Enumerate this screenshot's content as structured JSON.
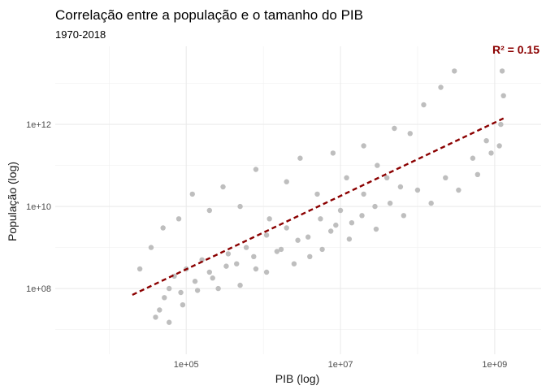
{
  "chart_data": {
    "type": "scatter",
    "title": "Correlação entre a população e o tamanho do PIB",
    "subtitle": "1970-2018",
    "xlabel": "PIB (log)",
    "ylabel": "População (log)",
    "x_scale": "log10",
    "y_scale": "log10",
    "xlim": [
      2000,
      4000000000
    ],
    "ylim": [
      2500000,
      80000000000000
    ],
    "x_ticks": [
      100000,
      10000000,
      1000000000
    ],
    "x_tick_labels": [
      "1e+05",
      "1e+07",
      "1e+09"
    ],
    "y_ticks": [
      100000000,
      10000000000,
      1000000000000
    ],
    "y_tick_labels": [
      "1e+08",
      "1e+10",
      "1e+12"
    ],
    "grid": true,
    "point_color": "#bebebe",
    "fit_line": {
      "type": "linear-in-log",
      "color": "#8b0000",
      "dash": "dashed",
      "x": [
        20000,
        1300000000
      ],
      "y": [
        70000000,
        1400000000000
      ]
    },
    "annotation": {
      "text": "R² = 0.15",
      "color": "#8b0000",
      "position": "top-right"
    },
    "series": [
      {
        "x": [
          25000,
          35000,
          50000,
          80000,
          120000,
          200000,
          300000,
          500000,
          800000,
          1200000,
          2000000,
          3000000,
          5000000,
          8000000,
          12000000,
          20000000,
          30000000,
          50000000,
          80000000,
          120000000,
          200000000,
          300000000,
          600000000,
          900000000,
          1200000000,
          1300000000,
          1250000000,
          1150000000
        ],
        "y": [
          300000000,
          1000000000,
          3000000000,
          5000000000,
          20000000000,
          8000000000,
          30000000000,
          10000000000,
          80000000000,
          5000000000,
          40000000000,
          150000000000,
          20000000000,
          200000000000,
          50000000000,
          300000000000,
          100000000000,
          800000000000,
          600000000000,
          3000000000000,
          8000000000000,
          20000000000000,
          60000000000,
          200000000000,
          1000000000000,
          5000000000000,
          20000000000000,
          300000000000
        ]
      },
      {
        "x": [
          40000,
          45000,
          52000,
          60000,
          70000,
          85000,
          100000,
          130000,
          160000,
          200000,
          260000,
          350000,
          450000,
          600000,
          800000,
          1100000,
          1500000,
          2000000,
          2800000,
          4000000,
          5500000,
          7500000,
          10000000,
          14000000,
          20000000,
          28000000,
          40000000,
          60000000
        ],
        "y": [
          20000000,
          30000000,
          60000000,
          100000000,
          200000000,
          80000000,
          300000000,
          150000000,
          500000000,
          250000000,
          100000000,
          700000000,
          400000000,
          1000000000,
          300000000,
          2000000000,
          800000000,
          3000000000,
          1500000000,
          600000000,
          5000000000,
          2500000000,
          8000000000,
          4000000000,
          20000000000,
          10000000000,
          50000000000,
          30000000000
        ]
      },
      {
        "x": [
          60000,
          90000,
          140000,
          220000,
          330000,
          500000,
          750000,
          1100000,
          1700000,
          2500000,
          3800000,
          5800000,
          8700000,
          13000000,
          19000000,
          29000000,
          44000000,
          66000000,
          100000000,
          150000000,
          230000000,
          340000000,
          520000000,
          780000000
        ],
        "y": [
          15000000,
          40000000,
          90000000,
          180000000,
          350000000,
          120000000,
          600000000,
          250000000,
          900000000,
          400000000,
          1800000000,
          900000000,
          3500000000,
          1600000000,
          6000000000,
          2800000000,
          12000000000,
          6000000000,
          25000000000,
          12000000000,
          50000000000,
          25000000000,
          150000000000,
          400000000000
        ]
      }
    ]
  }
}
